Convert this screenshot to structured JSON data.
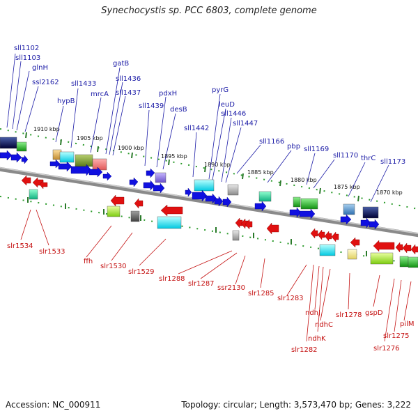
{
  "header": {
    "title": "Synechocystis sp. PCC 6803, complete genome"
  },
  "footer": {
    "accession": "Accession: NC_000911",
    "summary": "Topology: circular; Length: 3,573,470 bp; Genes: 3,222"
  },
  "scale_labels": [
    "1910 kbp",
    "1905 kbp",
    "1900 kbp",
    "1895 kbp",
    "1890 kbp",
    "1885 kbp",
    "1880 kbp",
    "1875 kbp",
    "1870 kbp"
  ],
  "top_genes": [
    "sll1102",
    "sll1103",
    "glnH",
    "ssl2162",
    "hypB",
    "sll1433",
    "mrcA",
    "gatB",
    "sll1436",
    "sll1437",
    "sll1439",
    "pdxH",
    "desB",
    "sll1442",
    "pyrG",
    "leuD",
    "sll1446",
    "sll1447",
    "sll1166",
    "pbp",
    "sll1169",
    "sll1170",
    "thrC",
    "sll1173"
  ],
  "bottom_genes": [
    "slr1534",
    "slr1533",
    "ffh",
    "slr1530",
    "slr1529",
    "slr1288",
    "slr1287",
    "ssr2130",
    "slr1285",
    "slr1283",
    "slr1282",
    "ndhJ",
    "ndhK",
    "ndhC",
    "slr1278",
    "gspD",
    "slr1276",
    "slr1275",
    "pilM"
  ],
  "colors": {
    "top_label": "#1a1aa6",
    "bottom_label": "#c41010",
    "forward_arrow": "#1010e0",
    "reverse_arrow": "#e01010",
    "axis": "#808080",
    "tick": "#2a9a2a"
  }
}
